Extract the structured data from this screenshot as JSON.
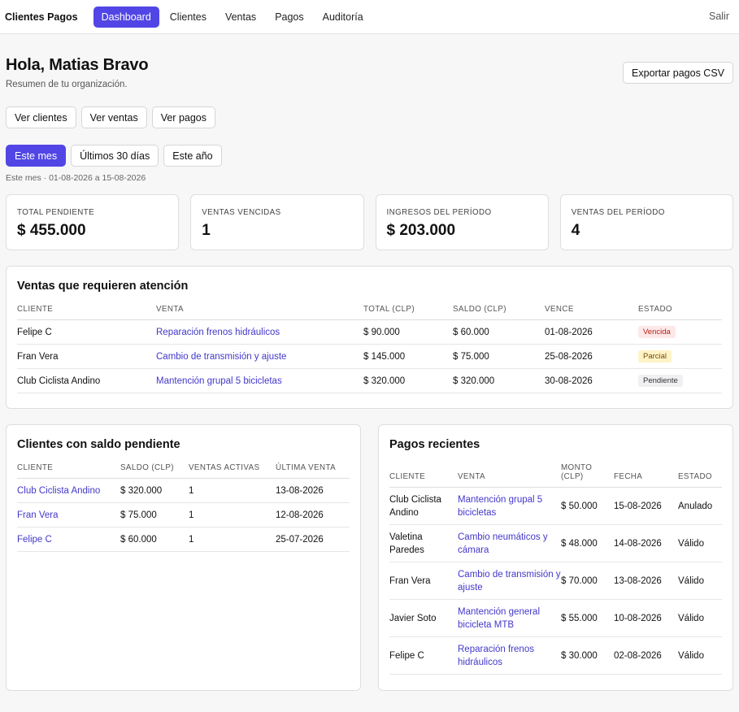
{
  "nav": {
    "brand": "Clientes Pagos",
    "links": [
      "Dashboard",
      "Clientes",
      "Ventas",
      "Pagos",
      "Auditoría"
    ],
    "logout": "Salir"
  },
  "header": {
    "greeting": "Hola, Matias Bravo",
    "subtitle": "Resumen de tu organización.",
    "export_label": "Exportar pagos CSV"
  },
  "quick_links": [
    "Ver clientes",
    "Ver ventas",
    "Ver pagos"
  ],
  "period": {
    "options": [
      "Este mes",
      "Últimos 30 días",
      "Este año"
    ],
    "selected": "Este mes",
    "note": "Este mes · 01-08-2026 a 15-08-2026"
  },
  "kpis": [
    {
      "label": "TOTAL PENDIENTE",
      "value": "$ 455.000"
    },
    {
      "label": "VENTAS VENCIDAS",
      "value": "1"
    },
    {
      "label": "INGRESOS DEL PERÍODO",
      "value": "$ 203.000"
    },
    {
      "label": "VENTAS DEL PERÍODO",
      "value": "4"
    }
  ],
  "attention": {
    "title": "Ventas que requieren atención",
    "columns": [
      "CLIENTE",
      "VENTA",
      "TOTAL (CLP)",
      "SALDO (CLP)",
      "VENCE",
      "ESTADO"
    ],
    "rows": [
      {
        "cliente": "Felipe C",
        "venta": "Reparación frenos hidráulicos",
        "total": "$ 90.000",
        "saldo": "$ 60.000",
        "vence": "01-08-2026",
        "estado": "Vencida"
      },
      {
        "cliente": "Fran Vera",
        "venta": "Cambio de transmisión y ajuste",
        "total": "$ 145.000",
        "saldo": "$ 75.000",
        "vence": "25-08-2026",
        "estado": "Parcial"
      },
      {
        "cliente": "Club Ciclista Andino",
        "venta": "Mantención grupal 5 bicicletas",
        "total": "$ 320.000",
        "saldo": "$ 320.000",
        "vence": "30-08-2026",
        "estado": "Pendiente"
      }
    ]
  },
  "clients": {
    "title": "Clientes con saldo pendiente",
    "columns": [
      "CLIENTE",
      "SALDO (CLP)",
      "VENTAS ACTIVAS",
      "ÚLTIMA VENTA"
    ],
    "rows": [
      {
        "cliente": "Club Ciclista Andino",
        "saldo": "$ 320.000",
        "activas": "1",
        "ultima": "13-08-2026"
      },
      {
        "cliente": "Fran Vera",
        "saldo": "$ 75.000",
        "activas": "1",
        "ultima": "12-08-2026"
      },
      {
        "cliente": "Felipe C",
        "saldo": "$ 60.000",
        "activas": "1",
        "ultima": "25-07-2026"
      }
    ]
  },
  "payments": {
    "title": "Pagos recientes",
    "columns": [
      "CLIENTE",
      "VENTA",
      "MONTO (CLP)",
      "FECHA",
      "ESTADO"
    ],
    "rows": [
      {
        "cliente": "Club Ciclista Andino",
        "venta": "Mantención grupal 5 bicicletas",
        "monto": "$ 50.000",
        "fecha": "15-08-2026",
        "estado": "Anulado"
      },
      {
        "cliente": "Valetina Paredes",
        "venta": "Cambio neumáticos y cámara",
        "monto": "$ 48.000",
        "fecha": "14-08-2026",
        "estado": "Válido"
      },
      {
        "cliente": "Fran Vera",
        "venta": "Cambio de transmisión y ajuste",
        "monto": "$ 70.000",
        "fecha": "13-08-2026",
        "estado": "Válido"
      },
      {
        "cliente": "Javier Soto",
        "venta": "Mantención general bicicleta MTB",
        "monto": "$ 55.000",
        "fecha": "10-08-2026",
        "estado": "Válido"
      },
      {
        "cliente": "Felipe C",
        "venta": "Reparación frenos hidráulicos",
        "monto": "$ 30.000",
        "fecha": "02-08-2026",
        "estado": "Válido"
      }
    ]
  },
  "colors": {
    "accent": "#5146e5",
    "link": "#4338ca",
    "badge_vencida_bg": "#fde8e8",
    "badge_parcial_bg": "#fef3c7",
    "badge_pendiente_bg": "#f0f0f2"
  }
}
